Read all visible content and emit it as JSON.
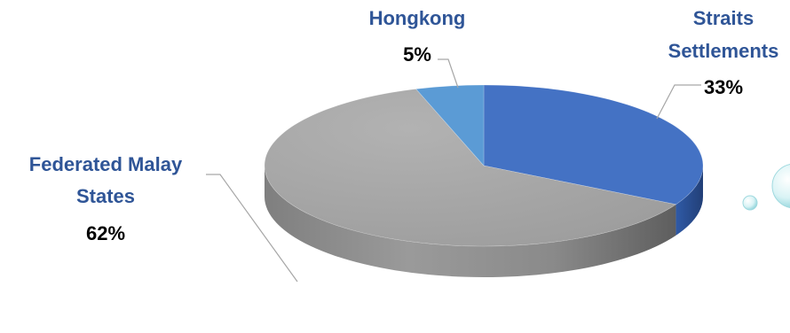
{
  "chart_data": {
    "type": "pie",
    "style": "3d",
    "title": "",
    "categories": [
      "Straits Settlements",
      "Federated Malay States",
      "Hongkong"
    ],
    "values": [
      33,
      62,
      5
    ],
    "unit": "%",
    "labels": [
      {
        "name_lines": [
          "Straits",
          "Settlements"
        ],
        "percent": "33%"
      },
      {
        "name_lines": [
          "Federated Malay",
          "States"
        ],
        "percent": "62%"
      },
      {
        "name_lines": [
          "Hongkong"
        ],
        "percent": "5%"
      }
    ],
    "colors": [
      "#4472c4",
      "#a5a5a5",
      "#5b9bd5"
    ],
    "label_color": "#2f5597",
    "legend": "none"
  }
}
